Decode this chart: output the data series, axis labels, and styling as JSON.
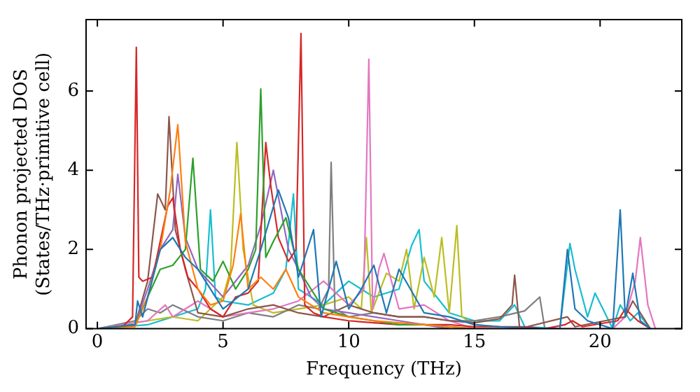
{
  "chart_data": {
    "type": "line",
    "xlabel": "Frequency (THz)",
    "ylabel": "Phonon projected DOS\n(States/THz·primitive cell)",
    "xlim": [
      -0.45,
      23.25
    ],
    "ylim": [
      0,
      7.8
    ],
    "xticks": [
      0,
      5,
      10,
      15,
      20
    ],
    "yticks": [
      0,
      2,
      4,
      6
    ],
    "grid": false,
    "legend": false,
    "marker": "none",
    "line_style": "solid",
    "series": [
      {
        "color": "#1f77b4",
        "x": [
          0,
          1.5,
          1.6,
          1.8,
          2.5,
          3,
          3.5,
          4,
          5,
          6,
          6.5,
          7.2,
          7.6,
          8,
          8.6,
          8.9,
          9.5,
          10,
          10.5,
          11,
          11.5,
          12,
          13,
          14,
          15,
          16,
          17,
          18.4,
          18.7,
          19,
          19.5,
          20.5,
          20.8,
          21,
          21.3,
          21.6,
          22
        ],
        "values": [
          0,
          0.1,
          0.7,
          0.3,
          2.0,
          2.3,
          1.8,
          1.5,
          0.5,
          1.0,
          2.0,
          3.5,
          2.8,
          1.3,
          2.5,
          0.3,
          1.7,
          0.5,
          1.0,
          1.6,
          0.4,
          1.5,
          0.4,
          0.3,
          0.1,
          0.05,
          0.02,
          0,
          2.0,
          0.5,
          0.2,
          0,
          3.0,
          0.3,
          1.4,
          0.2,
          0
        ]
      },
      {
        "color": "#ff7f0e",
        "x": [
          0,
          1.5,
          2,
          2.5,
          2.9,
          3.2,
          3.5,
          4,
          4.5,
          5,
          5.4,
          5.7,
          6,
          6.5,
          7,
          7.5,
          8,
          9,
          10,
          11,
          12,
          13,
          14,
          15
        ],
        "values": [
          0,
          0.05,
          0.8,
          2.0,
          3.5,
          5.15,
          2.2,
          1.0,
          0.6,
          0.7,
          1.6,
          2.9,
          1.0,
          1.3,
          1.0,
          1.5,
          0.8,
          0.4,
          0.3,
          0.2,
          0.15,
          0.1,
          0.05,
          0
        ]
      },
      {
        "color": "#2ca02c",
        "x": [
          0,
          1.5,
          2,
          2.5,
          3,
          3.5,
          3.8,
          4.1,
          4.6,
          5,
          5.5,
          6,
          6.3,
          6.5,
          6.7,
          7,
          7.5,
          8,
          8.5,
          9,
          10,
          11,
          12,
          13,
          14,
          15
        ],
        "values": [
          0,
          0.1,
          0.8,
          1.5,
          1.6,
          2.0,
          4.3,
          1.5,
          1.2,
          1.7,
          1.0,
          1.5,
          2.0,
          6.05,
          1.8,
          2.2,
          2.8,
          1.5,
          1.0,
          0.5,
          0.3,
          0.2,
          0.1,
          0.1,
          0.05,
          0
        ]
      },
      {
        "color": "#d62728",
        "x": [
          0,
          1,
          1.4,
          1.55,
          1.65,
          1.8,
          2.2,
          2.6,
          2.8,
          3,
          3.3,
          3.6,
          4,
          4.5,
          5,
          5.5,
          6,
          6.4,
          6.7,
          6.9,
          7.2,
          7.6,
          7.9,
          8.1,
          8.25,
          8.6,
          9,
          10,
          11,
          12,
          13,
          14,
          15,
          16,
          17,
          17.8,
          18.6,
          18.9,
          19.3,
          20.7,
          21,
          21.5,
          22
        ],
        "values": [
          0,
          0.05,
          0.3,
          7.1,
          1.3,
          1.2,
          1.3,
          2.5,
          3.1,
          3.3,
          2.0,
          1.3,
          1.0,
          0.5,
          0.3,
          0.8,
          0.9,
          1.2,
          4.7,
          3.6,
          2.3,
          1.7,
          2.0,
          7.45,
          0.6,
          0.4,
          0.3,
          0.2,
          0.15,
          0.1,
          0.1,
          0.1,
          0.05,
          0.05,
          0.05,
          0,
          0.1,
          0.2,
          0.05,
          0.2,
          0.5,
          0.2,
          0
        ]
      },
      {
        "color": "#9467bd",
        "x": [
          0,
          1.5,
          2,
          2.5,
          3,
          3.2,
          3.5,
          4,
          5,
          6,
          6.5,
          7,
          7.3,
          7.6,
          8,
          8.5,
          9,
          10,
          11,
          12,
          13,
          14
        ],
        "values": [
          0,
          0.1,
          1.0,
          2.0,
          2.5,
          3.9,
          2.3,
          1.5,
          0.8,
          1.6,
          2.6,
          4.0,
          3.0,
          2.0,
          1.5,
          0.8,
          0.5,
          0.4,
          0.3,
          0.2,
          0.1,
          0
        ]
      },
      {
        "color": "#8c564b",
        "x": [
          0,
          1.5,
          2,
          2.4,
          2.7,
          2.85,
          3.1,
          3.5,
          4,
          5,
          6,
          7,
          8,
          9,
          10,
          11,
          12,
          13,
          14,
          15,
          16,
          16.5,
          16.6,
          16.8,
          18.7,
          19,
          21,
          21.3,
          22
        ],
        "values": [
          0,
          0.1,
          1.2,
          3.4,
          3.0,
          5.35,
          2.5,
          1.5,
          0.4,
          0.3,
          0.5,
          0.6,
          0.4,
          0.3,
          0.6,
          0.4,
          0.3,
          0.3,
          0.2,
          0.15,
          0.25,
          0.6,
          1.35,
          0,
          0.3,
          0.05,
          0.3,
          0.7,
          0
        ]
      },
      {
        "color": "#e377c2",
        "x": [
          0,
          2,
          2.7,
          3,
          4,
          5,
          6,
          7,
          8,
          9,
          10,
          10.6,
          10.8,
          10.95,
          11.2,
          11.4,
          12,
          13,
          14,
          15,
          20.5,
          21,
          21.4,
          21.6,
          21.9,
          22.2
        ],
        "values": [
          0,
          0.2,
          0.6,
          0.3,
          0.7,
          0.3,
          0.4,
          0.5,
          0.7,
          1.2,
          0.6,
          1.0,
          6.8,
          0.5,
          1.5,
          1.9,
          0.5,
          0.6,
          0.2,
          0,
          0,
          0.3,
          1.2,
          2.3,
          0.6,
          0
        ]
      },
      {
        "color": "#7f7f7f",
        "x": [
          0,
          1.5,
          2,
          2.5,
          3,
          4,
          5,
          6,
          7,
          8,
          8.8,
          9.2,
          9.3,
          9.45,
          10,
          11,
          12,
          13,
          14,
          15,
          16,
          17,
          17.6,
          17.8
        ],
        "values": [
          0,
          0.2,
          0.5,
          0.4,
          0.6,
          0.3,
          0.2,
          0.4,
          0.3,
          0.6,
          0.5,
          1.0,
          4.2,
          0.5,
          0.3,
          0.4,
          0.3,
          0.3,
          0.2,
          0.2,
          0.3,
          0.45,
          0.8,
          0
        ]
      },
      {
        "color": "#bcbd22",
        "x": [
          0,
          2,
          3,
          4,
          5,
          5.3,
          5.55,
          5.8,
          6.2,
          7,
          8,
          9,
          10,
          10.5,
          10.7,
          10.9,
          11.5,
          12,
          12.3,
          12.6,
          13,
          13.4,
          13.7,
          14,
          14.3,
          14.5,
          15,
          16,
          17
        ],
        "values": [
          0,
          0.2,
          0.3,
          0.2,
          0.8,
          1.5,
          4.7,
          2.0,
          0.6,
          0.4,
          0.5,
          0.6,
          0.8,
          0.5,
          2.3,
          0.4,
          1.4,
          1.2,
          2.0,
          0.5,
          1.8,
          0.8,
          2.3,
          0.4,
          2.6,
          0.3,
          0.1,
          0.05,
          0
        ]
      },
      {
        "color": "#17becf",
        "x": [
          0,
          2,
          3,
          4,
          4.3,
          4.5,
          4.7,
          5,
          6,
          7,
          7.5,
          7.8,
          8,
          9,
          10,
          11,
          12,
          12.5,
          12.8,
          13,
          13.5,
          14,
          15,
          16,
          16.6,
          17,
          18.4,
          18.8,
          19,
          19.5,
          19.8,
          20.5,
          20.8,
          21.2,
          21.5,
          22
        ],
        "values": [
          0,
          0.1,
          0.3,
          0.5,
          1.0,
          3.0,
          0.8,
          0.7,
          0.6,
          0.9,
          1.5,
          3.4,
          1.0,
          0.6,
          1.2,
          0.8,
          1.0,
          2.1,
          2.5,
          1.2,
          0.8,
          0.4,
          0.2,
          0.2,
          0.6,
          0.05,
          0,
          2.15,
          1.5,
          0.3,
          0.9,
          0,
          0.6,
          0.2,
          0.4,
          0
        ]
      }
    ]
  }
}
